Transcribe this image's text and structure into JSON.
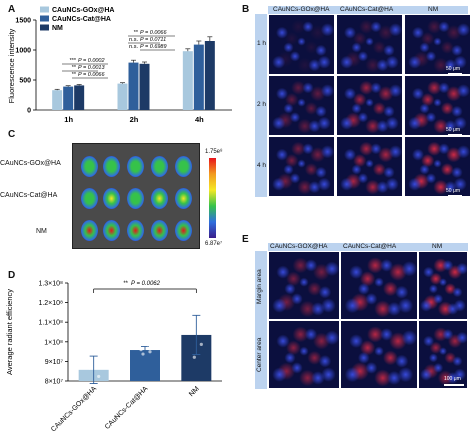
{
  "panels": {
    "a": "A",
    "b": "B",
    "c": "C",
    "d": "D",
    "e": "E"
  },
  "chart_a": {
    "type": "bar",
    "ylabel": "Fluorescence intensity",
    "ylim": [
      0,
      1500
    ],
    "yticks": [
      "0",
      "500",
      "1000",
      "1500"
    ],
    "categories": [
      "1h",
      "2h",
      "4h"
    ],
    "series": [
      {
        "name": "CAuNCs-GOx@HA",
        "color": "#a8c8de",
        "values": [
          330,
          440,
          980
        ],
        "errors": [
          15,
          15,
          40
        ]
      },
      {
        "name": "CAuNCs-Cat@HA",
        "color": "#2f5f9b",
        "values": [
          390,
          790,
          1090
        ],
        "errors": [
          15,
          40,
          60
        ]
      },
      {
        "name": "NM",
        "color": "#1d3a66",
        "values": [
          410,
          770,
          1150
        ],
        "errors": [
          15,
          30,
          70
        ]
      }
    ],
    "annotations": [
      {
        "sig": "***",
        "text": "P = 0.0002"
      },
      {
        "sig": "**",
        "text": "P = 0.0013"
      },
      {
        "sig": "**",
        "text": "P = 0.0066"
      },
      {
        "sig": "**",
        "text": "P = 0.0066"
      },
      {
        "sig": "n.s.",
        "text": "P = 0.0711"
      },
      {
        "sig": "n.s.",
        "text": "P = 0.6989"
      }
    ]
  },
  "panel_b": {
    "columns": [
      "CAuNCs-GOx@HA",
      "CAuNCs-Cat@HA",
      "NM"
    ],
    "rows": [
      "1 h",
      "2 h",
      "4 h"
    ],
    "scale": "50 μm"
  },
  "panel_c": {
    "rows": [
      "CAuNCs-GOx@HA",
      "CAuNCs-Cat@HA",
      "NM"
    ],
    "cbar_max": "1.75e⁸",
    "cbar_min": "6.87e⁷"
  },
  "chart_d": {
    "type": "bar",
    "ylabel": "Average radiant efficiency",
    "yticks": [
      "8×10⁷",
      "9×10⁷",
      "1×10⁸",
      "1.1×10⁸",
      "1.2×10⁸",
      "1.3×10⁸"
    ],
    "ylim": [
      80000000,
      130000000
    ],
    "categories": [
      "CAuNCs-GOx@HA",
      "CAuNCs-Cat@HA",
      "NM"
    ],
    "values": [
      85700000,
      95800000,
      103500000
    ],
    "errors": [
      7000000,
      1800000,
      10000000
    ],
    "colors": [
      "#a8c8de",
      "#2f5f9b",
      "#1d3a66"
    ],
    "annotation": {
      "sig": "**",
      "text": "P = 0.0062"
    }
  },
  "panel_e": {
    "columns": [
      "CAuNCs-GOX@HA",
      "CAuNCs-Cat@HA",
      "NM"
    ],
    "rows": [
      "Margin area",
      "Center area"
    ],
    "scale": "100 μm"
  }
}
